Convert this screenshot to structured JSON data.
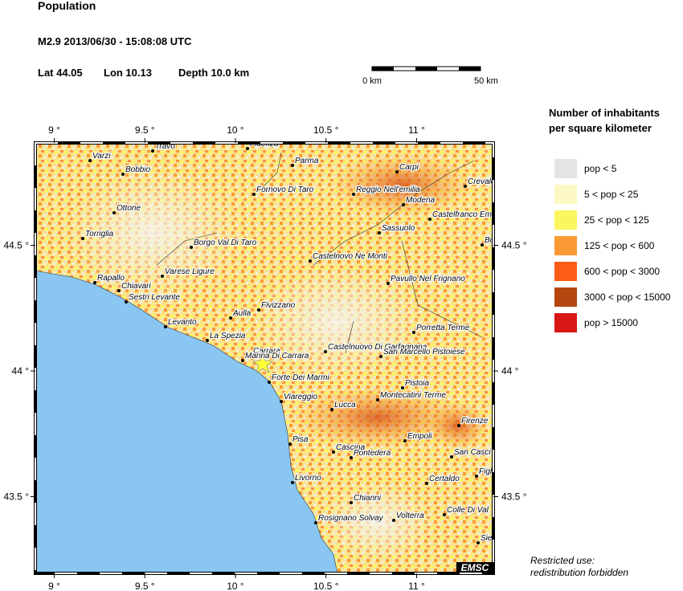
{
  "header": {
    "title": "Population",
    "event": "M2.9  2013/06/30 - 15:08:08 UTC",
    "lat": "Lat 44.05",
    "lon": "Lon 10.13",
    "depth": "Depth  10.0 km"
  },
  "scale_bar": {
    "start": "0 km",
    "end": "50 km"
  },
  "map": {
    "lon_ticks": [
      {
        "value": 9,
        "label": "9 °"
      },
      {
        "value": 9.5,
        "label": "9.5 °"
      },
      {
        "value": 10,
        "label": "10 °"
      },
      {
        "value": 10.5,
        "label": "10.5 °"
      },
      {
        "value": 11,
        "label": "11 °"
      }
    ],
    "lat_ticks": [
      {
        "value": 44.5,
        "label": "44.5 °"
      },
      {
        "value": 44,
        "label": "44 °"
      },
      {
        "value": 43.5,
        "label": "43.5 °"
      }
    ],
    "towns": [
      "Varzi",
      "Travo",
      "Bobbio",
      "Ottone",
      "Torriglia",
      "Borgo Val Di Taro",
      "Varese Ligure",
      "Rapallo",
      "Chiavari",
      "Sestri Levante",
      "Levanto",
      "La Spezia",
      "Aulla",
      "Fivizzano",
      "Fidenza",
      "Parma",
      "Fornovo Di Taro",
      "Carpi",
      "Reggio Nell'emilia",
      "Modena",
      "Crevalcore",
      "Castelfranco Em",
      "Bo",
      "Sassuolo",
      "Castelnovo Ne Monti",
      "Pavullo Nel Frignano",
      "Porretta Terme",
      "Castelnuovo Di Garfagnana",
      "San Marcello Pistoiese",
      "Carrara",
      "Marina Di Carrara",
      "Forte Dei Marmi",
      "Viareggio",
      "Lucca",
      "Pistoia",
      "Montecatini Terme",
      "Firenze",
      "Pisa",
      "Empoli",
      "Cascina",
      "Pontedera",
      "San Casci",
      "Figl",
      "Livorno",
      "Certaldo",
      "Chianni",
      "Colle Di Val",
      "Volterra",
      "Rosignano Solvay",
      "Sier"
    ],
    "credit": "EMSC"
  },
  "legend": {
    "title": [
      "Number of inhabitants",
      "per square kilometer"
    ],
    "items": [
      {
        "label": "pop < 5",
        "color": "#e4e4e4"
      },
      {
        "label": "5 < pop < 25",
        "color": "#fbf8c4"
      },
      {
        "label": "25 < pop < 125",
        "color": "#fbf65e"
      },
      {
        "label": "125 < pop < 600",
        "color": "#fb9a34"
      },
      {
        "label": "600 < pop < 3000",
        "color": "#fb5c16"
      },
      {
        "label": "3000 < pop < 15000",
        "color": "#b4470f"
      },
      {
        "label": "pop > 15000",
        "color": "#d81616"
      }
    ]
  },
  "footer": [
    "Restricted use:",
    "redistribution forbidden"
  ]
}
